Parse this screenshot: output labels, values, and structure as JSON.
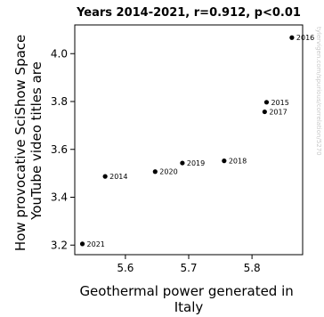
{
  "chart_data": {
    "type": "scatter",
    "title": "Years 2014-2021, r=0.912, p<0.01",
    "xlabel": "Geothermal power generated in Italy",
    "ylabel": "How provocative SciShow Space YouTube video titles are",
    "xlim": [
      5.52,
      5.88
    ],
    "ylim": [
      3.16,
      4.12
    ],
    "xticks": [
      5.6,
      5.7,
      5.8
    ],
    "xtick_labels": [
      "5.6",
      "5.7",
      "5.8"
    ],
    "yticks": [
      3.2,
      3.4,
      3.6,
      3.8,
      4.0
    ],
    "ytick_labels": [
      "3.2",
      "3.4",
      "3.6",
      "3.8",
      "4.0"
    ],
    "grid": false,
    "points": [
      {
        "label": "2014",
        "x": 5.568,
        "y": 3.487
      },
      {
        "label": "2015",
        "x": 5.823,
        "y": 3.797
      },
      {
        "label": "2016",
        "x": 5.863,
        "y": 4.067
      },
      {
        "label": "2017",
        "x": 5.82,
        "y": 3.757
      },
      {
        "label": "2018",
        "x": 5.756,
        "y": 3.552
      },
      {
        "label": "2019",
        "x": 5.69,
        "y": 3.543
      },
      {
        "label": "2020",
        "x": 5.647,
        "y": 3.507
      },
      {
        "label": "2021",
        "x": 5.532,
        "y": 3.205
      }
    ],
    "watermark": "tylervigen.com/spurious/correlation/5270"
  }
}
